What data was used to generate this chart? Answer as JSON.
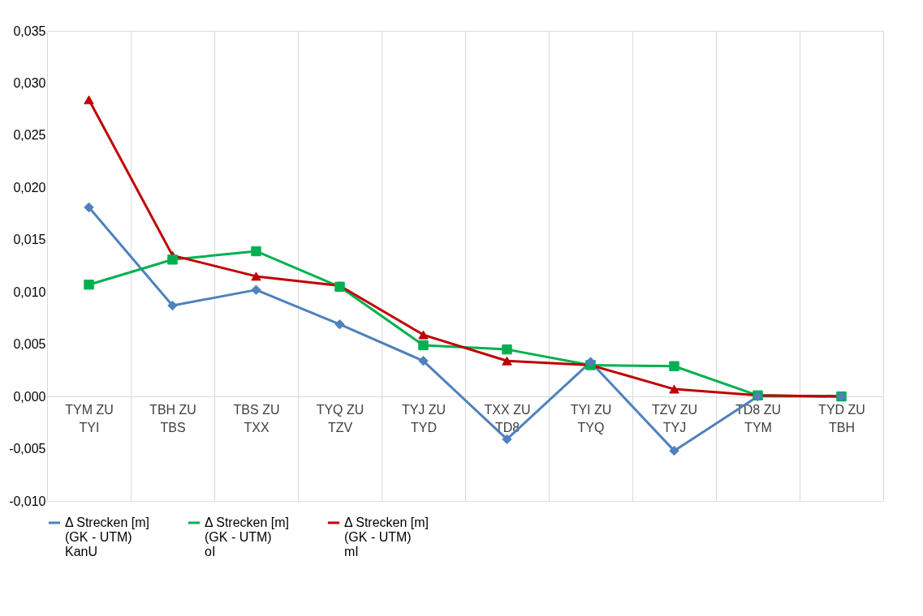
{
  "chart_data": {
    "type": "line",
    "categories": [
      "TYM ZU\nTYI",
      "TBH ZU\nTBS",
      "TBS ZU\nTXX",
      "TYQ ZU\nTZV",
      "TYJ ZU\nTYD",
      "TXX ZU\nTD8",
      "TYI ZU\nTYQ",
      "TZV ZU\nTYJ",
      "TD8 ZU\nTYM",
      "TYD ZU\nTBH"
    ],
    "series": [
      {
        "name": "Δ Strecken [m]\n(GK - UTM)\nKanU",
        "color": "#4f81bd",
        "marker": "diamond",
        "values": [
          0.0181,
          0.0087,
          0.0102,
          0.0069,
          0.0034,
          -0.0041,
          0.0033,
          -0.0052,
          0.0,
          0.0
        ]
      },
      {
        "name": "Δ Strecken [m]\n(GK - UTM)\noI",
        "color": "#00b050",
        "marker": "square",
        "values": [
          0.0107,
          0.0131,
          0.0139,
          0.0105,
          0.0049,
          0.0045,
          0.003,
          0.0029,
          0.0001,
          0.0
        ]
      },
      {
        "name": "Δ Strecken [m]\n(GK - UTM)\nmI",
        "color": "#c00000",
        "marker": "triangle",
        "values": [
          0.0284,
          0.0135,
          0.0115,
          0.0106,
          0.0059,
          0.0034,
          0.003,
          0.0007,
          0.0001,
          0.0
        ]
      }
    ],
    "ylim": [
      -0.01,
      0.035
    ],
    "yticks": [
      {
        "value": -0.01,
        "label": "-0,010"
      },
      {
        "value": -0.005,
        "label": "-0,005"
      },
      {
        "value": 0,
        "label": "0,000"
      },
      {
        "value": 0.005,
        "label": "0,005"
      },
      {
        "value": 0.01,
        "label": "0,010"
      },
      {
        "value": 0.015,
        "label": "0,015"
      },
      {
        "value": 0.02,
        "label": "0,020"
      },
      {
        "value": 0.025,
        "label": "0,025"
      },
      {
        "value": 0.03,
        "label": "0,030"
      },
      {
        "value": 0.035,
        "label": "0,035"
      }
    ],
    "grid": "x",
    "legend": "bottom",
    "line_style": "solid"
  }
}
